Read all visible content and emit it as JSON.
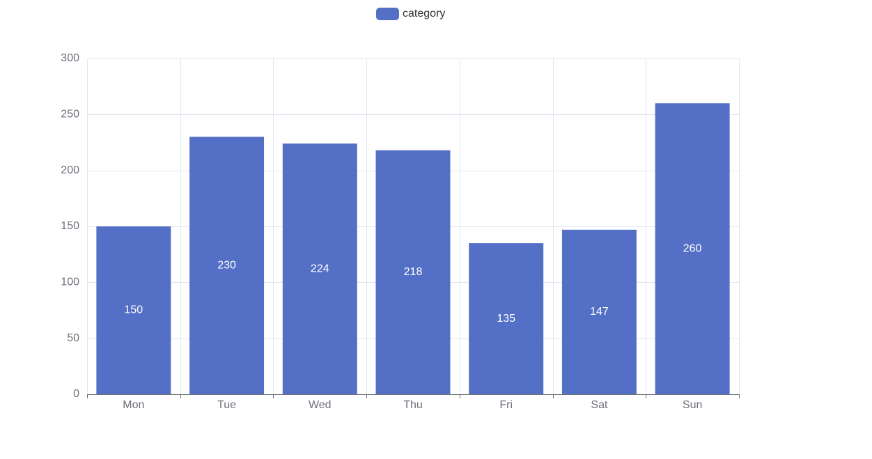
{
  "chart_data": {
    "type": "bar",
    "categories": [
      "Mon",
      "Tue",
      "Wed",
      "Thu",
      "Fri",
      "Sat",
      "Sun"
    ],
    "series": [
      {
        "name": "category",
        "values": [
          150,
          230,
          224,
          218,
          135,
          147,
          260
        ]
      }
    ],
    "title": "",
    "xlabel": "",
    "ylabel": "",
    "ylim": [
      0,
      300
    ],
    "yticks": [
      0,
      50,
      100,
      150,
      200,
      250,
      300
    ],
    "grid": true,
    "legend_position": "top-center",
    "data_labels": "inside-center",
    "colors": {
      "bar": "#5470c6",
      "grid": "#e0e6f1",
      "axis": "#6e7079",
      "label": "#ffffff"
    }
  }
}
